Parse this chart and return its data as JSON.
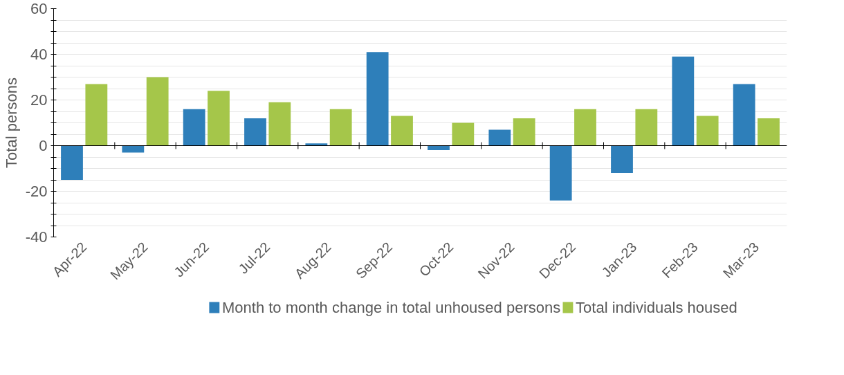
{
  "chart_data": {
    "type": "bar",
    "ylabel": "Total persons",
    "categories": [
      "Apr-22",
      "May-22",
      "Jun-22",
      "Jul-22",
      "Aug-22",
      "Sep-22",
      "Oct-22",
      "Nov-22",
      "Dec-22",
      "Jan-23",
      "Feb-23",
      "Mar-23"
    ],
    "series": [
      {
        "name": "Month to month change in total unhoused persons",
        "color": "#2e7fba",
        "values": [
          -15,
          -3,
          16,
          12,
          1,
          41,
          -2,
          7,
          -24,
          -12,
          39,
          27
        ]
      },
      {
        "name": "Total individuals housed",
        "color": "#a5c64a",
        "values": [
          27,
          30,
          24,
          19,
          16,
          13,
          10,
          12,
          16,
          16,
          13,
          12
        ]
      }
    ],
    "ylim": [
      -40,
      60
    ],
    "yticks": [
      -40,
      {
        "value": -35,
        "label": null
      },
      {
        "value": -30,
        "label": null
      },
      {
        "value": -25,
        "label": null
      },
      -20,
      {
        "value": -15,
        "label": null
      },
      {
        "value": -10,
        "label": null
      },
      {
        "value": -5,
        "label": null
      },
      0,
      {
        "value": 5,
        "label": null
      },
      {
        "value": 10,
        "label": null
      },
      {
        "value": 15,
        "label": null
      },
      20,
      {
        "value": 25,
        "label": null
      },
      {
        "value": 30,
        "label": null
      },
      {
        "value": 35,
        "label": null
      },
      40,
      {
        "value": 45,
        "label": null
      },
      {
        "value": 50,
        "label": null
      },
      {
        "value": 55,
        "label": null
      },
      60
    ],
    "grid": "y",
    "legend": "bottom"
  }
}
